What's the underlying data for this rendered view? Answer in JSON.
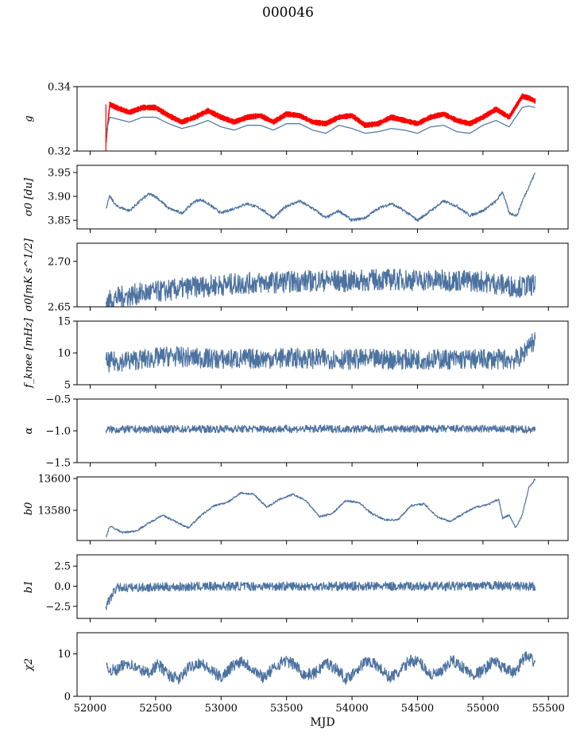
{
  "figure": {
    "title": "000046"
  },
  "chart_data": [
    {
      "type": "line",
      "ylabel": "g",
      "ylim": [
        0.32,
        0.34
      ],
      "yticks": [
        0.32,
        0.34
      ],
      "xlim": [
        51900,
        55650
      ],
      "series": [
        {
          "color": "#ff0000",
          "style": "band",
          "x": [
            52120,
            52150,
            52200,
            52300,
            52400,
            52500,
            52600,
            52700,
            52800,
            52900,
            53000,
            53100,
            53200,
            53300,
            53400,
            53500,
            53600,
            53700,
            53800,
            53900,
            54000,
            54100,
            54200,
            54300,
            54400,
            54500,
            54600,
            54700,
            54800,
            54900,
            55000,
            55100,
            55200,
            55300,
            55350,
            55400
          ],
          "y": [
            0.3225,
            0.3345,
            0.3335,
            0.332,
            0.3335,
            0.3335,
            0.331,
            0.329,
            0.3305,
            0.3325,
            0.3305,
            0.329,
            0.3305,
            0.331,
            0.329,
            0.3315,
            0.331,
            0.329,
            0.3285,
            0.3305,
            0.331,
            0.328,
            0.3285,
            0.3305,
            0.3295,
            0.3285,
            0.3305,
            0.3315,
            0.3295,
            0.3285,
            0.3305,
            0.333,
            0.3305,
            0.337,
            0.3365,
            0.3355
          ]
        },
        {
          "color": "#4c72a0",
          "style": "line",
          "x": [
            52120,
            52150,
            52200,
            52300,
            52400,
            52500,
            52600,
            52700,
            52800,
            52900,
            53000,
            53100,
            53200,
            53300,
            53400,
            53500,
            53600,
            53700,
            53800,
            53900,
            54000,
            54100,
            54200,
            54300,
            54400,
            54500,
            54600,
            54700,
            54800,
            54900,
            55000,
            55100,
            55200,
            55300,
            55350,
            55400
          ],
          "y": [
            0.3255,
            0.3305,
            0.33,
            0.329,
            0.3305,
            0.3305,
            0.3285,
            0.327,
            0.328,
            0.3295,
            0.3275,
            0.3265,
            0.328,
            0.328,
            0.3265,
            0.3285,
            0.3285,
            0.3265,
            0.3255,
            0.328,
            0.327,
            0.3255,
            0.326,
            0.327,
            0.3265,
            0.3255,
            0.3275,
            0.328,
            0.326,
            0.3255,
            0.328,
            0.3295,
            0.3275,
            0.3335,
            0.334,
            0.3335
          ]
        }
      ]
    },
    {
      "type": "line",
      "ylabel": "σ0 [du]",
      "ylim": [
        3.832,
        3.965
      ],
      "yticks": [
        3.85,
        3.9,
        3.95
      ],
      "xlim": [
        51900,
        55650
      ],
      "series": [
        {
          "color": "#4c72a0",
          "noise": 0.003,
          "x": [
            52120,
            52150,
            52200,
            52300,
            52400,
            52450,
            52500,
            52600,
            52700,
            52800,
            52850,
            52900,
            53000,
            53100,
            53200,
            53300,
            53400,
            53500,
            53600,
            53700,
            53800,
            53900,
            54000,
            54100,
            54200,
            54300,
            54400,
            54500,
            54600,
            54700,
            54800,
            54900,
            55000,
            55100,
            55150,
            55200,
            55260,
            55300,
            55350,
            55400
          ],
          "y": [
            3.875,
            3.9,
            3.88,
            3.87,
            3.895,
            3.905,
            3.9,
            3.875,
            3.865,
            3.89,
            3.893,
            3.885,
            3.865,
            3.875,
            3.885,
            3.875,
            3.855,
            3.88,
            3.89,
            3.875,
            3.855,
            3.87,
            3.85,
            3.855,
            3.875,
            3.885,
            3.87,
            3.85,
            3.87,
            3.89,
            3.88,
            3.86,
            3.87,
            3.89,
            3.91,
            3.865,
            3.86,
            3.89,
            3.92,
            3.95
          ]
        }
      ]
    },
    {
      "type": "line",
      "ylabel": "σ0[mK s^1/2]",
      "ylim": [
        2.65,
        2.72
      ],
      "yticks": [
        2.65,
        2.7
      ],
      "xlim": [
        51900,
        55650
      ],
      "series": [
        {
          "color": "#4c72a0",
          "noise": 0.012,
          "x": [
            52120,
            52200,
            52400,
            52600,
            52800,
            53000,
            53200,
            53400,
            53600,
            53800,
            54000,
            54200,
            54400,
            54600,
            54800,
            55000,
            55200,
            55300,
            55400
          ],
          "y": [
            2.655,
            2.66,
            2.665,
            2.668,
            2.672,
            2.674,
            2.676,
            2.677,
            2.678,
            2.679,
            2.678,
            2.68,
            2.68,
            2.679,
            2.679,
            2.678,
            2.673,
            2.672,
            2.675
          ]
        }
      ]
    },
    {
      "type": "line",
      "ylabel": "f_knee [mHz]",
      "ylim": [
        5,
        15
      ],
      "yticks": [
        5,
        10,
        15
      ],
      "xlim": [
        51900,
        55650
      ],
      "series": [
        {
          "color": "#4c72a0",
          "noise": 1.6,
          "x": [
            52120,
            52300,
            52500,
            52600,
            52800,
            53000,
            53500,
            54000,
            54500,
            55000,
            55250,
            55300,
            55350,
            55400
          ],
          "y": [
            8.5,
            8.8,
            9.2,
            9.5,
            9.2,
            9.0,
            9.2,
            9.0,
            9.0,
            9.0,
            9.0,
            9.5,
            11.5,
            11.8
          ]
        }
      ]
    },
    {
      "type": "line",
      "ylabel": "α",
      "ylim": [
        -1.5,
        -0.5
      ],
      "yticks": [
        -1.5,
        -1.0,
        -0.5
      ],
      "xlim": [
        51900,
        55650
      ],
      "series": [
        {
          "color": "#4c72a0",
          "noise": 0.06,
          "x": [
            52120,
            53000,
            54000,
            55000,
            55400
          ],
          "y": [
            -0.98,
            -0.97,
            -0.97,
            -0.97,
            -0.98
          ]
        }
      ]
    },
    {
      "type": "line",
      "ylabel": "b0",
      "ylim": [
        13561,
        13601
      ],
      "yticks": [
        13580,
        13600
      ],
      "xlim": [
        51900,
        55650
      ],
      "series": [
        {
          "color": "#4c72a0",
          "noise": 0.6,
          "x": [
            52120,
            52150,
            52250,
            52350,
            52450,
            52550,
            52650,
            52750,
            52850,
            52950,
            53050,
            53150,
            53250,
            53350,
            53450,
            53550,
            53650,
            53750,
            53850,
            53950,
            54050,
            54150,
            54250,
            54350,
            54450,
            54550,
            54650,
            54750,
            54850,
            54950,
            55050,
            55120,
            55150,
            55200,
            55250,
            55300,
            55350,
            55400
          ],
          "y": [
            13563,
            13570,
            13566,
            13567,
            13572,
            13577,
            13573,
            13569,
            13577,
            13583,
            13585,
            13591,
            13590,
            13582,
            13587,
            13590,
            13586,
            13576,
            13578,
            13586,
            13585,
            13578,
            13574,
            13574,
            13583,
            13584,
            13576,
            13573,
            13578,
            13582,
            13584,
            13587,
            13575,
            13577,
            13569,
            13577,
            13594,
            13600
          ]
        }
      ]
    },
    {
      "type": "line",
      "ylabel": "b1",
      "ylim": [
        -4.0,
        3.9
      ],
      "yticks": [
        -2.5,
        0.0,
        2.5
      ],
      "xlim": [
        51900,
        55650
      ],
      "series": [
        {
          "color": "#4c72a0",
          "noise": 0.55,
          "x": [
            52120,
            52200,
            53000,
            54000,
            55000,
            55100,
            55200,
            55300,
            55400
          ],
          "y": [
            -2.5,
            -0.2,
            0.0,
            0.0,
            0.0,
            0.1,
            0.0,
            0.0,
            0.0
          ]
        }
      ]
    },
    {
      "type": "line",
      "ylabel": "χ2",
      "ylim": [
        0,
        15
      ],
      "yticks": [
        0,
        10
      ],
      "xlabel": "MJD",
      "xticks": [
        52000,
        52500,
        53000,
        53500,
        54000,
        54500,
        55000,
        55500
      ],
      "xlim": [
        51900,
        55650
      ],
      "series": [
        {
          "color": "#4c72a0",
          "noise": 1.4,
          "x": [
            52120,
            52200,
            52280,
            52360,
            52440,
            52520,
            52600,
            52680,
            52760,
            52840,
            52920,
            53000,
            53080,
            53160,
            53240,
            53320,
            53400,
            53480,
            53560,
            53640,
            53720,
            53800,
            53880,
            53960,
            54040,
            54120,
            54200,
            54280,
            54360,
            54440,
            54520,
            54600,
            54680,
            54760,
            54840,
            54920,
            55000,
            55080,
            55160,
            55240,
            55320,
            55400
          ],
          "y": [
            6.5,
            6.0,
            8.0,
            6.5,
            5.5,
            7.5,
            5.0,
            4.0,
            7.0,
            8.0,
            6.0,
            4.5,
            7.0,
            8.5,
            6.5,
            4.5,
            6.5,
            8.5,
            7.5,
            5.0,
            5.5,
            8.0,
            6.5,
            4.0,
            6.5,
            8.5,
            7.0,
            4.5,
            5.5,
            8.5,
            8.0,
            5.0,
            5.5,
            8.5,
            7.0,
            5.0,
            6.0,
            8.5,
            6.5,
            5.5,
            9.5,
            8.0
          ]
        }
      ]
    }
  ]
}
